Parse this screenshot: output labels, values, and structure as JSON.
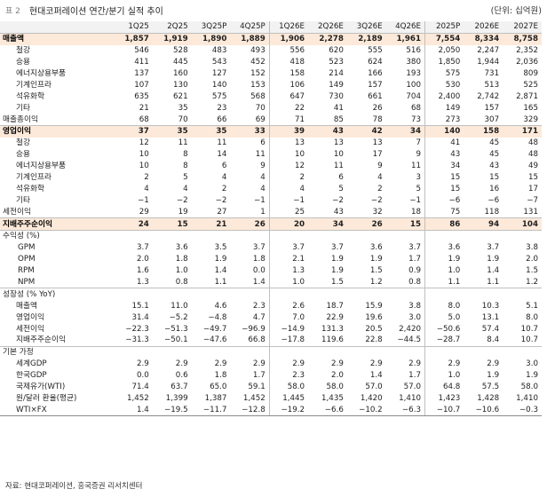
{
  "header": {
    "label": "표 2",
    "title": "현대코퍼레이션 연간/분기 실적 추이",
    "unit": "(단위: 십억원)"
  },
  "columns": [
    "1Q25",
    "2Q25",
    "3Q25P",
    "4Q25P",
    "1Q26E",
    "2Q26E",
    "3Q26E",
    "4Q26E",
    "2025P",
    "2026E",
    "2027E"
  ],
  "rows": [
    {
      "label": "매출액",
      "hl": true,
      "vals": [
        "1,857",
        "1,919",
        "1,890",
        "1,889",
        "1,906",
        "2,278",
        "2,189",
        "1,961",
        "7,554",
        "8,334",
        "8,758"
      ]
    },
    {
      "label": "철강",
      "ind": 1,
      "vals": [
        "546",
        "528",
        "483",
        "493",
        "556",
        "620",
        "555",
        "516",
        "2,050",
        "2,247",
        "2,352"
      ]
    },
    {
      "label": "승용",
      "ind": 1,
      "vals": [
        "411",
        "445",
        "543",
        "452",
        "418",
        "523",
        "624",
        "380",
        "1,850",
        "1,944",
        "2,036"
      ]
    },
    {
      "label": "에너지상용부품",
      "ind": 1,
      "vals": [
        "137",
        "160",
        "127",
        "152",
        "158",
        "214",
        "166",
        "193",
        "575",
        "731",
        "809"
      ]
    },
    {
      "label": "기계인프라",
      "ind": 1,
      "vals": [
        "107",
        "130",
        "140",
        "153",
        "106",
        "149",
        "157",
        "100",
        "530",
        "513",
        "525"
      ]
    },
    {
      "label": "석유화학",
      "ind": 1,
      "vals": [
        "635",
        "621",
        "575",
        "568",
        "647",
        "730",
        "661",
        "704",
        "2,400",
        "2,742",
        "2,871"
      ]
    },
    {
      "label": "기타",
      "ind": 1,
      "vals": [
        "21",
        "35",
        "23",
        "70",
        "22",
        "41",
        "26",
        "68",
        "149",
        "157",
        "165"
      ]
    },
    {
      "label": "매출총이익",
      "vals": [
        "68",
        "70",
        "66",
        "69",
        "71",
        "85",
        "78",
        "73",
        "273",
        "307",
        "329"
      ]
    },
    {
      "label": "영업이익",
      "hl": true,
      "vals": [
        "37",
        "35",
        "35",
        "33",
        "39",
        "43",
        "42",
        "34",
        "140",
        "158",
        "171"
      ]
    },
    {
      "label": "철강",
      "ind": 1,
      "vals": [
        "12",
        "11",
        "11",
        "6",
        "13",
        "13",
        "13",
        "7",
        "41",
        "45",
        "48"
      ]
    },
    {
      "label": "승용",
      "ind": 1,
      "vals": [
        "10",
        "8",
        "14",
        "11",
        "10",
        "10",
        "17",
        "9",
        "43",
        "45",
        "48"
      ]
    },
    {
      "label": "에너지상용부품",
      "ind": 1,
      "vals": [
        "10",
        "8",
        "6",
        "9",
        "12",
        "11",
        "9",
        "11",
        "34",
        "43",
        "49"
      ]
    },
    {
      "label": "기계인프라",
      "ind": 1,
      "vals": [
        "2",
        "5",
        "4",
        "4",
        "2",
        "6",
        "4",
        "3",
        "15",
        "15",
        "15"
      ]
    },
    {
      "label": "석유화학",
      "ind": 1,
      "vals": [
        "4",
        "4",
        "2",
        "4",
        "4",
        "5",
        "2",
        "5",
        "15",
        "16",
        "17"
      ]
    },
    {
      "label": "기타",
      "ind": 1,
      "vals": [
        "−1",
        "−2",
        "−2",
        "−1",
        "−1",
        "−2",
        "−2",
        "−1",
        "−6",
        "−6",
        "−7"
      ]
    },
    {
      "label": "세전이익",
      "vals": [
        "29",
        "19",
        "27",
        "1",
        "25",
        "43",
        "32",
        "18",
        "75",
        "118",
        "131"
      ]
    },
    {
      "label": "지배주주순이익",
      "hl": true,
      "vals": [
        "24",
        "15",
        "21",
        "26",
        "20",
        "34",
        "26",
        "15",
        "86",
        "94",
        "104"
      ]
    },
    {
      "label": "수익성 (%)",
      "section": true,
      "vals": [
        "",
        "",
        "",
        "",
        "",
        "",
        "",
        "",
        "",
        "",
        ""
      ]
    },
    {
      "label": "GPM",
      "ind": 2,
      "vals": [
        "3.7",
        "3.6",
        "3.5",
        "3.7",
        "3.7",
        "3.7",
        "3.6",
        "3.7",
        "3.6",
        "3.7",
        "3.8"
      ]
    },
    {
      "label": "OPM",
      "ind": 2,
      "vals": [
        "2.0",
        "1.8",
        "1.9",
        "1.8",
        "2.1",
        "1.9",
        "1.9",
        "1.7",
        "1.9",
        "1.9",
        "2.0"
      ]
    },
    {
      "label": "RPM",
      "ind": 2,
      "vals": [
        "1.6",
        "1.0",
        "1.4",
        "0.0",
        "1.3",
        "1.9",
        "1.5",
        "0.9",
        "1.0",
        "1.4",
        "1.5"
      ]
    },
    {
      "label": "NPM",
      "ind": 2,
      "vals": [
        "1.3",
        "0.8",
        "1.1",
        "1.4",
        "1.0",
        "1.5",
        "1.2",
        "0.8",
        "1.1",
        "1.1",
        "1.2"
      ]
    },
    {
      "label": "성장성 (% YoY)",
      "section": true,
      "vals": [
        "",
        "",
        "",
        "",
        "",
        "",
        "",
        "",
        "",
        "",
        ""
      ]
    },
    {
      "label": "매출액",
      "ind": 1,
      "vals": [
        "15.1",
        "11.0",
        "4.6",
        "2.3",
        "2.6",
        "18.7",
        "15.9",
        "3.8",
        "8.0",
        "10.3",
        "5.1"
      ]
    },
    {
      "label": "영업이익",
      "ind": 1,
      "vals": [
        "31.4",
        "−5.2",
        "−4.8",
        "4.7",
        "7.0",
        "22.9",
        "19.6",
        "3.0",
        "5.0",
        "13.1",
        "8.0"
      ]
    },
    {
      "label": "세전이익",
      "ind": 1,
      "vals": [
        "−22.3",
        "−51.3",
        "−49.7",
        "−96.9",
        "−14.9",
        "131.3",
        "20.5",
        "2,420",
        "−50.6",
        "57.4",
        "10.7"
      ]
    },
    {
      "label": "지배주주순이익",
      "ind": 1,
      "vals": [
        "−31.3",
        "−50.1",
        "−47.6",
        "66.8",
        "−17.8",
        "119.6",
        "22.8",
        "−44.5",
        "−28.7",
        "8.4",
        "10.7"
      ]
    },
    {
      "label": "기본 가정",
      "section": true,
      "vals": [
        "",
        "",
        "",
        "",
        "",
        "",
        "",
        "",
        "",
        "",
        ""
      ]
    },
    {
      "label": "세계GDP",
      "ind": 1,
      "vals": [
        "2.9",
        "2.9",
        "2.9",
        "2.9",
        "2.9",
        "2.9",
        "2.9",
        "2.9",
        "2.9",
        "2.9",
        "3.0"
      ]
    },
    {
      "label": "한국GDP",
      "ind": 1,
      "vals": [
        "0.0",
        "0.6",
        "1.8",
        "1.7",
        "2.3",
        "2.0",
        "1.4",
        "1.7",
        "1.0",
        "1.9",
        "1.9"
      ]
    },
    {
      "label": "국제유가(WTI)",
      "ind": 1,
      "vals": [
        "71.4",
        "63.7",
        "65.0",
        "59.1",
        "58.0",
        "58.0",
        "57.0",
        "57.0",
        "64.8",
        "57.5",
        "58.0"
      ]
    },
    {
      "label": "원/달러 환율(평균)",
      "ind": 1,
      "vals": [
        "1,452",
        "1,399",
        "1,387",
        "1,452",
        "1,445",
        "1,435",
        "1,420",
        "1,410",
        "1,423",
        "1,428",
        "1,410"
      ]
    },
    {
      "label": "WTI×FX",
      "ind": 1,
      "vals": [
        "1.4",
        "−19.5",
        "−11.7",
        "−12.8",
        "−19.2",
        "−6.6",
        "−10.2",
        "−6.3",
        "−10.7",
        "−10.6",
        "−0.3"
      ]
    }
  ],
  "source": "자료: 현대코퍼레이션, 흥국증권 리서치센터"
}
